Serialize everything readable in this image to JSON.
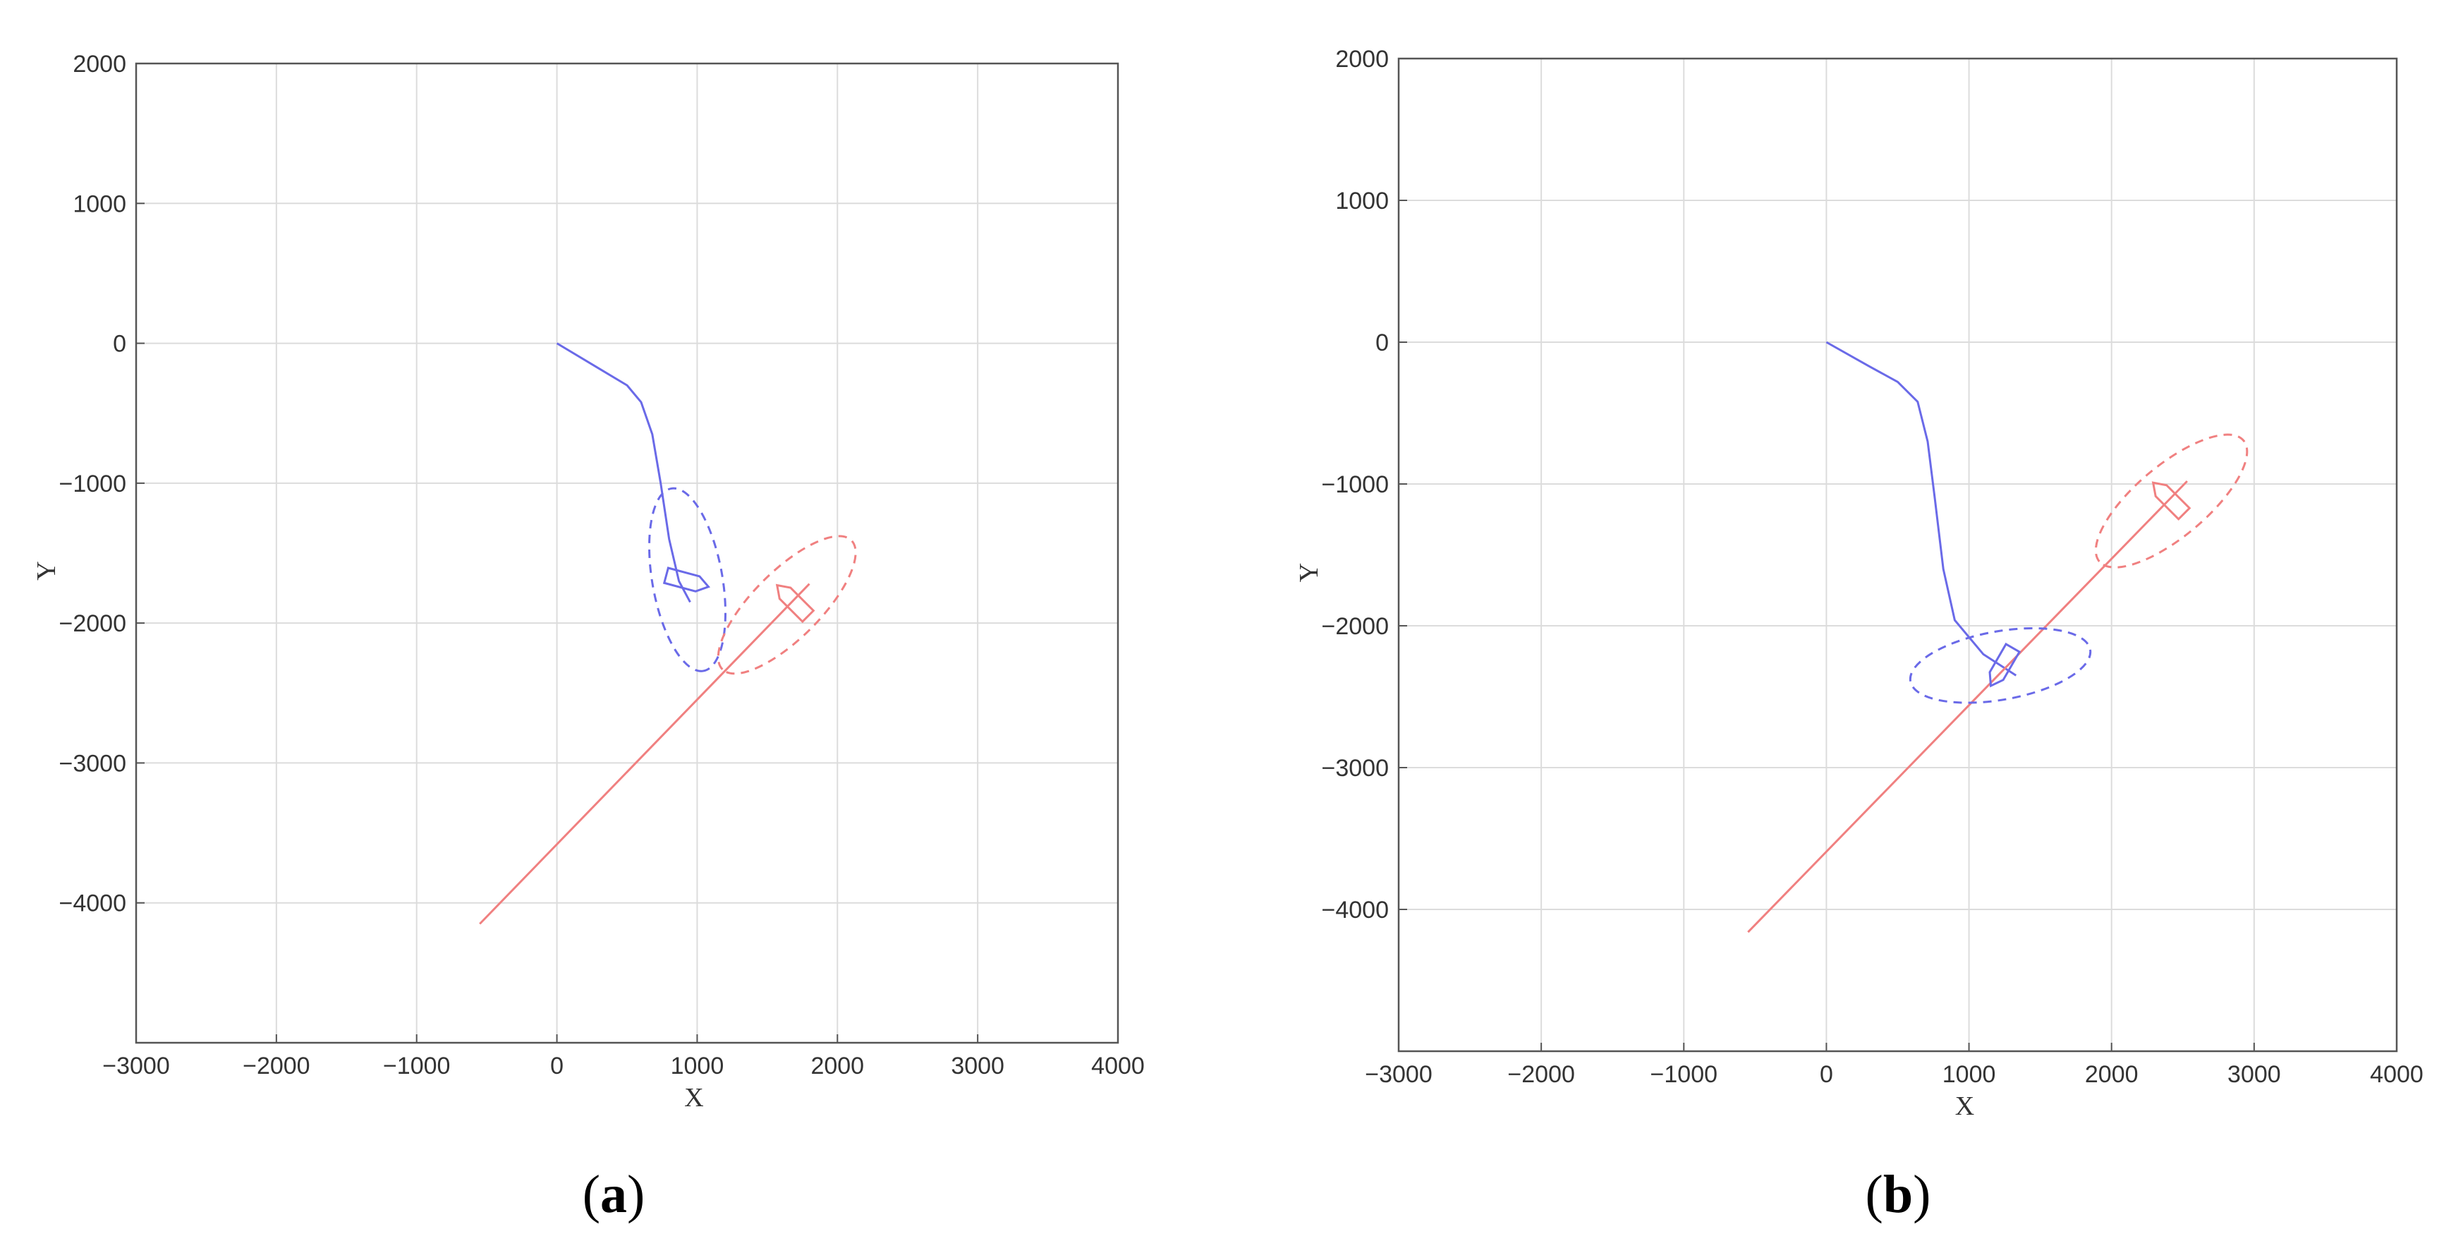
{
  "colors": {
    "own_ship": "#6a6ae8",
    "target_ship": "#f08080",
    "grid": "#dcdcdc",
    "axis": "#555555"
  },
  "captions": [
    {
      "open": "(",
      "letter": "a",
      "close": ")"
    },
    {
      "open": "(",
      "letter": "b",
      "close": ")"
    }
  ],
  "chart_data": [
    {
      "type": "line",
      "panel": "a",
      "title": "",
      "xlabel": "X",
      "ylabel": "Y",
      "xlim": [
        -3000,
        4000
      ],
      "ylim": [
        -5000,
        2000
      ],
      "xticks": [
        -3000,
        -2000,
        -1000,
        0,
        1000,
        2000,
        3000,
        4000
      ],
      "yticks": [
        2000,
        1000,
        0,
        -1000,
        -2000,
        -3000,
        -4000
      ],
      "grid": true,
      "series": [
        {
          "role": "own-ship-track",
          "points": [
            [
              0,
              0
            ],
            [
              300,
              -180
            ],
            [
              500,
              -300
            ],
            [
              600,
              -420
            ],
            [
              680,
              -650
            ],
            [
              740,
              -1000
            ],
            [
              800,
              -1400
            ],
            [
              870,
              -1700
            ],
            [
              950,
              -1850
            ]
          ]
        },
        {
          "role": "target-ship-track",
          "points": [
            [
              -550,
              -4150
            ],
            [
              1800,
              -1720
            ]
          ]
        }
      ],
      "ships": [
        {
          "role": "own-ship",
          "x": 930,
          "y": -1700,
          "heading_deg": 15
        },
        {
          "role": "target-ship",
          "x": 1680,
          "y": -1840,
          "heading_deg": 225
        }
      ],
      "domains": [
        {
          "role": "own-ship-domain",
          "cx": 930,
          "cy": -1690,
          "rx": 660,
          "ry": 250,
          "angle_deg": 80
        },
        {
          "role": "target-ship-domain",
          "cx": 1640,
          "cy": -1870,
          "rx": 650,
          "ry": 240,
          "angle_deg": 135
        }
      ]
    },
    {
      "type": "line",
      "panel": "b",
      "title": "",
      "xlabel": "X",
      "ylabel": "Y",
      "xlim": [
        -3000,
        4000
      ],
      "ylim": [
        -5000,
        2000
      ],
      "xticks": [
        -3000,
        -2000,
        -1000,
        0,
        1000,
        2000,
        3000,
        4000
      ],
      "yticks": [
        2000,
        1000,
        0,
        -1000,
        -2000,
        -3000,
        -4000
      ],
      "grid": true,
      "series": [
        {
          "role": "own-ship-track",
          "points": [
            [
              0,
              0
            ],
            [
              300,
              -170
            ],
            [
              500,
              -280
            ],
            [
              640,
              -420
            ],
            [
              710,
              -700
            ],
            [
              760,
              -1100
            ],
            [
              820,
              -1600
            ],
            [
              900,
              -1960
            ],
            [
              1100,
              -2200
            ],
            [
              1330,
              -2350
            ]
          ]
        },
        {
          "role": "target-ship-track",
          "points": [
            [
              -550,
              -4160
            ],
            [
              2530,
              -980
            ]
          ]
        }
      ],
      "ships": [
        {
          "role": "own-ship",
          "x": 1230,
          "y": -2290,
          "heading_deg": 120
        },
        {
          "role": "target-ship",
          "x": 2400,
          "y": -1100,
          "heading_deg": 225
        }
      ],
      "domains": [
        {
          "role": "own-ship-domain",
          "cx": 1220,
          "cy": -2280,
          "rx": 640,
          "ry": 240,
          "angle_deg": 170
        },
        {
          "role": "target-ship-domain",
          "cx": 2420,
          "cy": -1120,
          "rx": 660,
          "ry": 250,
          "angle_deg": 140
        }
      ]
    }
  ]
}
